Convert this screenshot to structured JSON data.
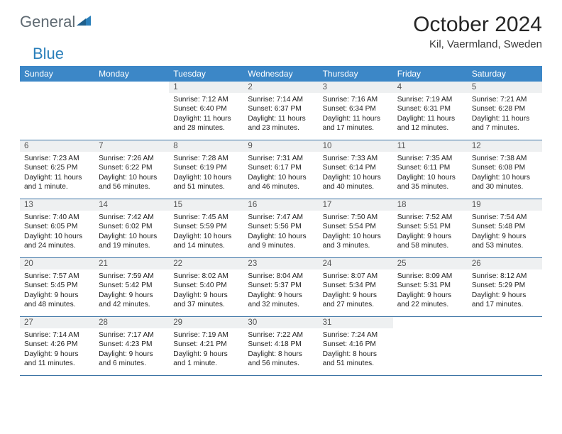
{
  "brand": {
    "word1": "General",
    "word2": "Blue"
  },
  "title": "October 2024",
  "location": "Kil, Vaermland, Sweden",
  "colors": {
    "header_bg": "#3c87c7",
    "header_text": "#ffffff",
    "daynum_bg": "#eef0f1",
    "week_border": "#3c74a5",
    "title_color": "#262626"
  },
  "weekdays": [
    "Sunday",
    "Monday",
    "Tuesday",
    "Wednesday",
    "Thursday",
    "Friday",
    "Saturday"
  ],
  "weeks": [
    [
      null,
      null,
      {
        "n": "1",
        "sr": "Sunrise: 7:12 AM",
        "ss": "Sunset: 6:40 PM",
        "dl": "Daylight: 11 hours and 28 minutes."
      },
      {
        "n": "2",
        "sr": "Sunrise: 7:14 AM",
        "ss": "Sunset: 6:37 PM",
        "dl": "Daylight: 11 hours and 23 minutes."
      },
      {
        "n": "3",
        "sr": "Sunrise: 7:16 AM",
        "ss": "Sunset: 6:34 PM",
        "dl": "Daylight: 11 hours and 17 minutes."
      },
      {
        "n": "4",
        "sr": "Sunrise: 7:19 AM",
        "ss": "Sunset: 6:31 PM",
        "dl": "Daylight: 11 hours and 12 minutes."
      },
      {
        "n": "5",
        "sr": "Sunrise: 7:21 AM",
        "ss": "Sunset: 6:28 PM",
        "dl": "Daylight: 11 hours and 7 minutes."
      }
    ],
    [
      {
        "n": "6",
        "sr": "Sunrise: 7:23 AM",
        "ss": "Sunset: 6:25 PM",
        "dl": "Daylight: 11 hours and 1 minute."
      },
      {
        "n": "7",
        "sr": "Sunrise: 7:26 AM",
        "ss": "Sunset: 6:22 PM",
        "dl": "Daylight: 10 hours and 56 minutes."
      },
      {
        "n": "8",
        "sr": "Sunrise: 7:28 AM",
        "ss": "Sunset: 6:19 PM",
        "dl": "Daylight: 10 hours and 51 minutes."
      },
      {
        "n": "9",
        "sr": "Sunrise: 7:31 AM",
        "ss": "Sunset: 6:17 PM",
        "dl": "Daylight: 10 hours and 46 minutes."
      },
      {
        "n": "10",
        "sr": "Sunrise: 7:33 AM",
        "ss": "Sunset: 6:14 PM",
        "dl": "Daylight: 10 hours and 40 minutes."
      },
      {
        "n": "11",
        "sr": "Sunrise: 7:35 AM",
        "ss": "Sunset: 6:11 PM",
        "dl": "Daylight: 10 hours and 35 minutes."
      },
      {
        "n": "12",
        "sr": "Sunrise: 7:38 AM",
        "ss": "Sunset: 6:08 PM",
        "dl": "Daylight: 10 hours and 30 minutes."
      }
    ],
    [
      {
        "n": "13",
        "sr": "Sunrise: 7:40 AM",
        "ss": "Sunset: 6:05 PM",
        "dl": "Daylight: 10 hours and 24 minutes."
      },
      {
        "n": "14",
        "sr": "Sunrise: 7:42 AM",
        "ss": "Sunset: 6:02 PM",
        "dl": "Daylight: 10 hours and 19 minutes."
      },
      {
        "n": "15",
        "sr": "Sunrise: 7:45 AM",
        "ss": "Sunset: 5:59 PM",
        "dl": "Daylight: 10 hours and 14 minutes."
      },
      {
        "n": "16",
        "sr": "Sunrise: 7:47 AM",
        "ss": "Sunset: 5:56 PM",
        "dl": "Daylight: 10 hours and 9 minutes."
      },
      {
        "n": "17",
        "sr": "Sunrise: 7:50 AM",
        "ss": "Sunset: 5:54 PM",
        "dl": "Daylight: 10 hours and 3 minutes."
      },
      {
        "n": "18",
        "sr": "Sunrise: 7:52 AM",
        "ss": "Sunset: 5:51 PM",
        "dl": "Daylight: 9 hours and 58 minutes."
      },
      {
        "n": "19",
        "sr": "Sunrise: 7:54 AM",
        "ss": "Sunset: 5:48 PM",
        "dl": "Daylight: 9 hours and 53 minutes."
      }
    ],
    [
      {
        "n": "20",
        "sr": "Sunrise: 7:57 AM",
        "ss": "Sunset: 5:45 PM",
        "dl": "Daylight: 9 hours and 48 minutes."
      },
      {
        "n": "21",
        "sr": "Sunrise: 7:59 AM",
        "ss": "Sunset: 5:42 PM",
        "dl": "Daylight: 9 hours and 42 minutes."
      },
      {
        "n": "22",
        "sr": "Sunrise: 8:02 AM",
        "ss": "Sunset: 5:40 PM",
        "dl": "Daylight: 9 hours and 37 minutes."
      },
      {
        "n": "23",
        "sr": "Sunrise: 8:04 AM",
        "ss": "Sunset: 5:37 PM",
        "dl": "Daylight: 9 hours and 32 minutes."
      },
      {
        "n": "24",
        "sr": "Sunrise: 8:07 AM",
        "ss": "Sunset: 5:34 PM",
        "dl": "Daylight: 9 hours and 27 minutes."
      },
      {
        "n": "25",
        "sr": "Sunrise: 8:09 AM",
        "ss": "Sunset: 5:31 PM",
        "dl": "Daylight: 9 hours and 22 minutes."
      },
      {
        "n": "26",
        "sr": "Sunrise: 8:12 AM",
        "ss": "Sunset: 5:29 PM",
        "dl": "Daylight: 9 hours and 17 minutes."
      }
    ],
    [
      {
        "n": "27",
        "sr": "Sunrise: 7:14 AM",
        "ss": "Sunset: 4:26 PM",
        "dl": "Daylight: 9 hours and 11 minutes."
      },
      {
        "n": "28",
        "sr": "Sunrise: 7:17 AM",
        "ss": "Sunset: 4:23 PM",
        "dl": "Daylight: 9 hours and 6 minutes."
      },
      {
        "n": "29",
        "sr": "Sunrise: 7:19 AM",
        "ss": "Sunset: 4:21 PM",
        "dl": "Daylight: 9 hours and 1 minute."
      },
      {
        "n": "30",
        "sr": "Sunrise: 7:22 AM",
        "ss": "Sunset: 4:18 PM",
        "dl": "Daylight: 8 hours and 56 minutes."
      },
      {
        "n": "31",
        "sr": "Sunrise: 7:24 AM",
        "ss": "Sunset: 4:16 PM",
        "dl": "Daylight: 8 hours and 51 minutes."
      },
      null,
      null
    ]
  ]
}
